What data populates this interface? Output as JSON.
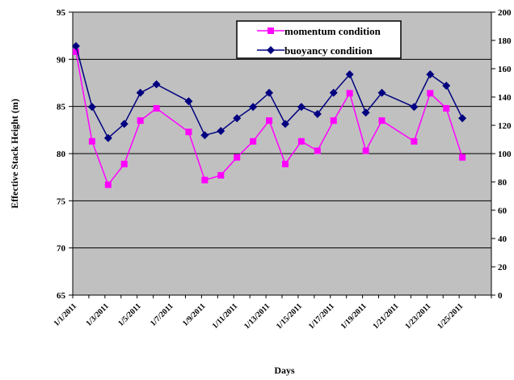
{
  "chart_data": {
    "type": "line",
    "ylabel": "Effective Stack Height (m)",
    "xlabel": "Days",
    "ylim_left": [
      65,
      95
    ],
    "ylim_right": [
      0,
      200
    ],
    "left_ticks": [
      "65",
      "70",
      "75",
      "80",
      "85",
      "90",
      "95"
    ],
    "right_ticks": [
      "0",
      "20",
      "40",
      "60",
      "80",
      "100",
      "120",
      "140",
      "160",
      "180",
      "200"
    ],
    "x_tick_labels": [
      "1/1/2011",
      "1/3/2011",
      "1/5/2011",
      "1/7/2011",
      "1/9/2011",
      "1/11/2011",
      "1/13/2011",
      "1/15/2011",
      "1/17/2011",
      "1/19/2011",
      "1/21/2011",
      "1/23/2011",
      "1/25/2011"
    ],
    "x_day_range": [
      1,
      27
    ],
    "grid": "horizontal major gridlines",
    "legend_position": "top-center",
    "background_color": "#c0c0c0",
    "series": [
      {
        "name": "momentum condition",
        "axis": "left",
        "color": "#ff00ff",
        "marker": "square",
        "days": [
          1.2,
          2.2,
          3.2,
          4.2,
          5.2,
          6.2,
          8.2,
          9.2,
          10.2,
          11.2,
          12.2,
          13.2,
          14.2,
          15.2,
          16.2,
          17.2,
          18.2,
          19.2,
          20.2,
          22.2,
          23.2,
          24.2,
          25.2
        ],
        "values": [
          90.8,
          81.3,
          76.7,
          78.9,
          83.5,
          84.8,
          82.3,
          77.2,
          77.7,
          79.6,
          81.3,
          83.5,
          78.9,
          81.3,
          80.3,
          83.5,
          86.4,
          80.3,
          83.5,
          81.3,
          86.4,
          84.8,
          79.6
        ]
      },
      {
        "name": "buoyancy condition",
        "axis": "right",
        "color": "#000080",
        "marker": "diamond",
        "days": [
          1.2,
          2.2,
          3.2,
          4.2,
          5.2,
          6.2,
          8.2,
          9.2,
          10.2,
          11.2,
          12.2,
          13.2,
          14.2,
          15.2,
          16.2,
          17.2,
          18.2,
          19.2,
          20.2,
          22.2,
          23.2,
          24.2,
          25.2
        ],
        "values": [
          176,
          133,
          111,
          121,
          143,
          149,
          137,
          113,
          116,
          125,
          133,
          143,
          121,
          133,
          128,
          143,
          156,
          129,
          143,
          133,
          156,
          148,
          125
        ]
      }
    ]
  }
}
